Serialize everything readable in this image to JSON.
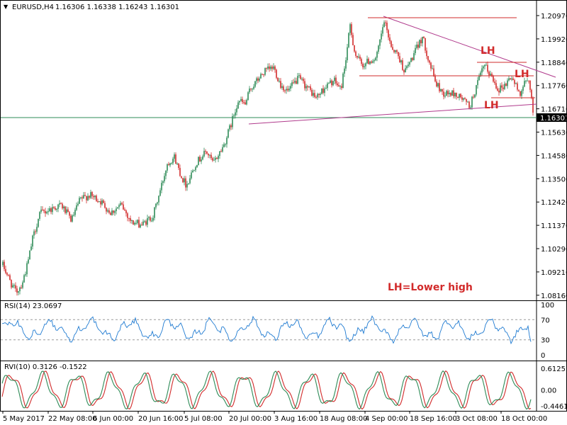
{
  "header": {
    "symbol": "EURUSD,H4",
    "ohlc": "1.16306 1.16338 1.16243 1.16301",
    "arrow_icon": "triangle-down-icon"
  },
  "price_axis": {
    "ticks": [
      "1.20970",
      "1.19920",
      "1.18840",
      "1.17760",
      "1.16710",
      "1.15630",
      "1.14580",
      "1.13500",
      "1.12420",
      "1.11370",
      "1.10290",
      "1.09210",
      "1.08160"
    ],
    "current_price": "1.16301"
  },
  "annotations": {
    "lh_1": "LH",
    "lh_2": "LH",
    "lh_3": "LH",
    "legend": "LH=Lower high"
  },
  "rsi": {
    "title": "RSI(14) 23.0697",
    "ticks": [
      "100",
      "70",
      "30",
      "0"
    ]
  },
  "rvi": {
    "title": "RVI(10) 0.3126 -0.1522",
    "ticks": [
      "0.6125",
      "0.00",
      "-0.4461"
    ]
  },
  "time_axis": {
    "labels": [
      "5 May 2017",
      "22 May 08:00",
      "6 Jun 00:00",
      "20 Jun 16:00",
      "5 Jul 08:00",
      "20 Jul 00:00",
      "3 Aug 16:00",
      "18 Aug 08:00",
      "4 Sep 00:00",
      "18 Sep 16:00",
      "3 Oct 08:00",
      "18 Oct 00:00"
    ]
  },
  "colors": {
    "bull": "#2e8b57",
    "bear": "#d22b2b",
    "trendline": "#b03a8c",
    "resistance": "#d22b2b",
    "price_line": "#2e8b57",
    "rsi_line": "#1e7ad1",
    "rvi_main": "#2e8b57",
    "rvi_signal": "#d22b2b",
    "annotation": "#d22b2b"
  },
  "chart_data": {
    "type": "candlestick",
    "symbol": "EURUSD",
    "timeframe": "H4",
    "ylim": [
      1.0816,
      1.215
    ],
    "price_path": [
      [
        0,
        1.0975
      ],
      [
        8,
        1.092
      ],
      [
        15,
        1.0868
      ],
      [
        22,
        1.083
      ],
      [
        30,
        1.087
      ],
      [
        38,
        1.096
      ],
      [
        45,
        1.1075
      ],
      [
        55,
        1.119
      ],
      [
        70,
        1.121
      ],
      [
        85,
        1.123
      ],
      [
        100,
        1.116
      ],
      [
        112,
        1.1255
      ],
      [
        125,
        1.1275
      ],
      [
        140,
        1.125
      ],
      [
        155,
        1.1195
      ],
      [
        170,
        1.123
      ],
      [
        185,
        1.115
      ],
      [
        200,
        1.114
      ],
      [
        215,
        1.118
      ],
      [
        225,
        1.1295
      ],
      [
        235,
        1.142
      ],
      [
        245,
        1.145
      ],
      [
        255,
        1.136
      ],
      [
        262,
        1.132
      ],
      [
        275,
        1.142
      ],
      [
        290,
        1.1475
      ],
      [
        300,
        1.142
      ],
      [
        315,
        1.1505
      ],
      [
        325,
        1.16
      ],
      [
        335,
        1.171
      ],
      [
        345,
        1.169
      ],
      [
        352,
        1.176
      ],
      [
        362,
        1.18
      ],
      [
        372,
        1.184
      ],
      [
        385,
        1.186
      ],
      [
        395,
        1.178
      ],
      [
        405,
        1.175
      ],
      [
        420,
        1.181
      ],
      [
        432,
        1.177
      ],
      [
        445,
        1.172
      ],
      [
        458,
        1.177
      ],
      [
        470,
        1.18
      ],
      [
        480,
        1.176
      ],
      [
        487,
        1.19
      ],
      [
        493,
        1.205
      ],
      [
        500,
        1.192
      ],
      [
        510,
        1.187
      ],
      [
        520,
        1.189
      ],
      [
        530,
        1.19
      ],
      [
        541,
        1.207
      ],
      [
        552,
        1.195
      ],
      [
        560,
        1.192
      ],
      [
        570,
        1.184
      ],
      [
        580,
        1.19
      ],
      [
        595,
        1.2
      ],
      [
        605,
        1.188
      ],
      [
        615,
        1.178
      ],
      [
        625,
        1.174
      ],
      [
        638,
        1.174
      ],
      [
        650,
        1.172
      ],
      [
        662,
        1.168
      ],
      [
        672,
        1.178
      ],
      [
        682,
        1.187
      ],
      [
        692,
        1.182
      ],
      [
        702,
        1.176
      ],
      [
        712,
        1.178
      ],
      [
        720,
        1.182
      ],
      [
        732,
        1.174
      ],
      [
        740,
        1.179
      ],
      [
        746,
        1.18
      ],
      [
        752,
        1.163
      ]
    ]
  }
}
